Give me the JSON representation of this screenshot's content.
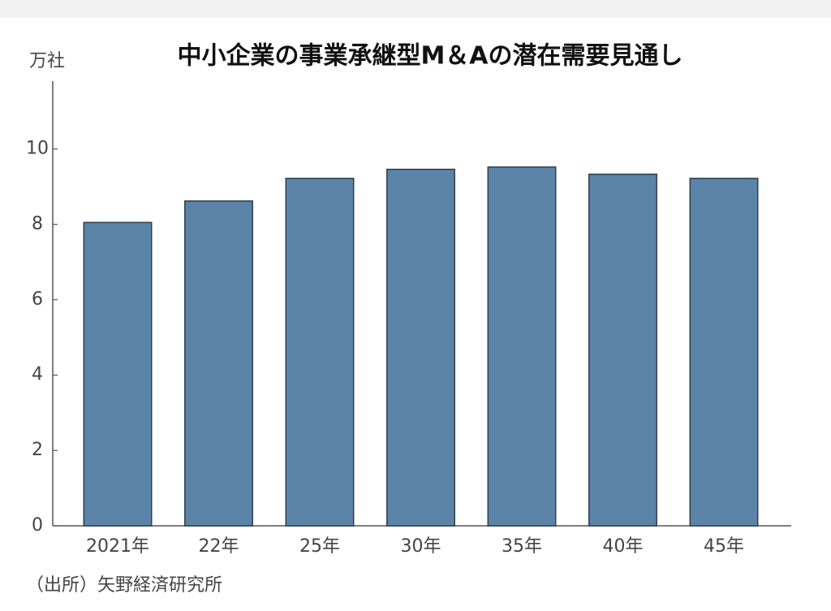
{
  "chart_data": {
    "type": "bar",
    "title": "中小企業の事業承継型M＆Aの潜在需要見通し",
    "y_unit": "万社",
    "source": "（出所）矢野経済研究所",
    "categories": [
      "2021年",
      "22年",
      "25年",
      "30年",
      "35年",
      "40年",
      "45年"
    ],
    "values": [
      8.05,
      8.62,
      9.22,
      9.46,
      9.52,
      9.33,
      9.22
    ],
    "color": "#5b84a8",
    "ylim": [
      0,
      11.8
    ],
    "yticks": [
      0,
      2,
      4,
      6,
      8,
      10
    ],
    "grid": false
  }
}
